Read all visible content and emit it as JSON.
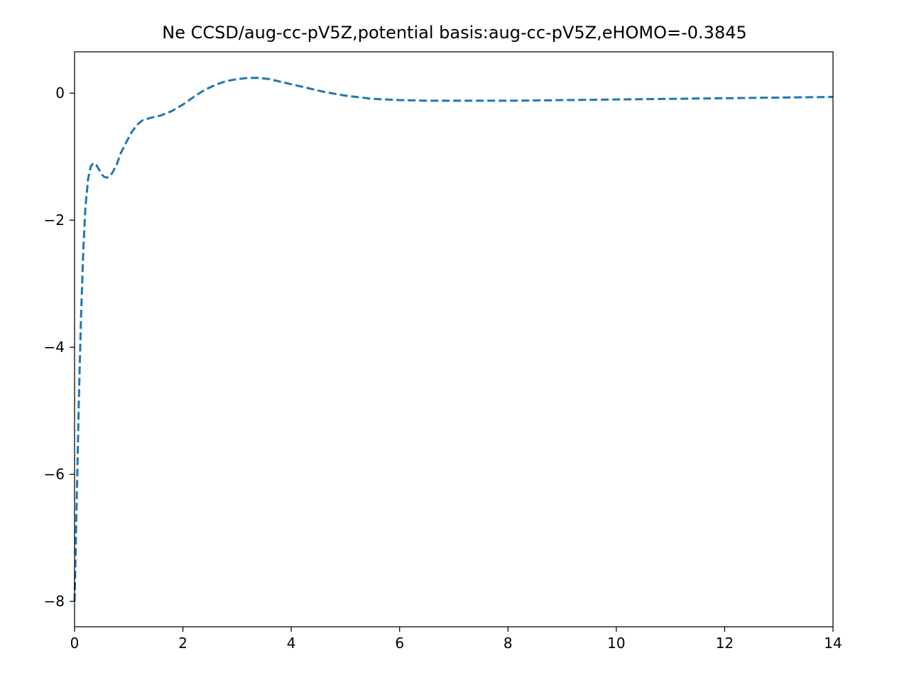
{
  "chart_data": {
    "type": "line",
    "title": "Ne CCSD/aug-cc-pV5Z,potential basis:aug-cc-pV5Z,eHOMO=-0.3845",
    "xlabel": "",
    "ylabel": "",
    "xlim": [
      0,
      14
    ],
    "ylim": [
      -8.4,
      0.65
    ],
    "xticks": [
      0,
      2,
      4,
      6,
      8,
      10,
      12,
      14
    ],
    "yticks": [
      0,
      -2,
      -4,
      -6,
      -8
    ],
    "xtick_labels": [
      "0",
      "2",
      "4",
      "6",
      "8",
      "10",
      "12",
      "14"
    ],
    "ytick_labels": [
      "0",
      "−2",
      "−4",
      "−6",
      "−8"
    ],
    "grid": false,
    "line_style": "dashed",
    "series": [
      {
        "color": "#1f77b4",
        "x": [
          0.0,
          0.02,
          0.05,
          0.08,
          0.12,
          0.16,
          0.2,
          0.25,
          0.3,
          0.35,
          0.4,
          0.45,
          0.5,
          0.55,
          0.6,
          0.65,
          0.7,
          0.78,
          0.85,
          0.95,
          1.05,
          1.15,
          1.25,
          1.4,
          1.6,
          1.8,
          2.0,
          2.2,
          2.4,
          2.6,
          2.8,
          3.0,
          3.2,
          3.4,
          3.6,
          3.8,
          4.0,
          4.3,
          4.6,
          5.0,
          5.5,
          6.0,
          6.5,
          7.0,
          7.5,
          8.0,
          9.0,
          10.0,
          11.0,
          12.0,
          13.0,
          14.0
        ],
        "y": [
          -8.0,
          -7.2,
          -6.0,
          -4.8,
          -3.5,
          -2.5,
          -1.8,
          -1.35,
          -1.15,
          -1.1,
          -1.13,
          -1.2,
          -1.28,
          -1.32,
          -1.33,
          -1.31,
          -1.25,
          -1.12,
          -0.95,
          -0.78,
          -0.62,
          -0.5,
          -0.43,
          -0.39,
          -0.35,
          -0.28,
          -0.18,
          -0.06,
          0.05,
          0.13,
          0.19,
          0.22,
          0.24,
          0.24,
          0.22,
          0.18,
          0.14,
          0.08,
          0.02,
          -0.04,
          -0.09,
          -0.11,
          -0.12,
          -0.12,
          -0.12,
          -0.12,
          -0.11,
          -0.1,
          -0.09,
          -0.08,
          -0.07,
          -0.06
        ]
      }
    ]
  }
}
